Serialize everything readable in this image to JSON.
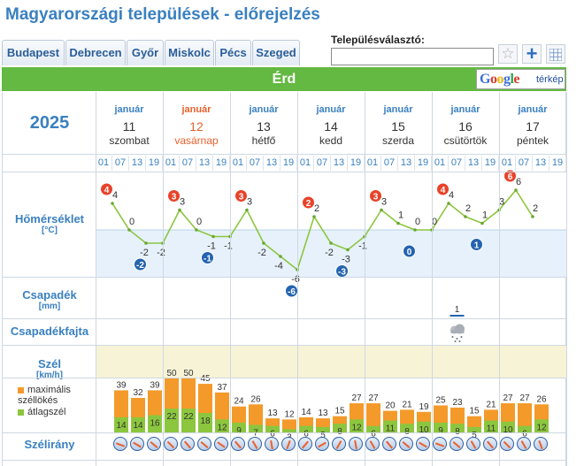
{
  "title": "Magyarországi települések - előrejelzés",
  "tabs": [
    "Budapest",
    "Debrecen",
    "Győr",
    "Miskolc",
    "Pécs",
    "Szeged"
  ],
  "selector": {
    "label": "Településválasztó:",
    "value": ""
  },
  "city": "Érd",
  "map_button": {
    "brand": "Google",
    "label": "térkép"
  },
  "year": "2025",
  "days": [
    {
      "month": "január",
      "day": "11",
      "weekday": "szombat"
    },
    {
      "month": "január",
      "day": "12",
      "weekday": "vasárnap"
    },
    {
      "month": "január",
      "day": "13",
      "weekday": "hétfő"
    },
    {
      "month": "január",
      "day": "14",
      "weekday": "kedd"
    },
    {
      "month": "január",
      "day": "15",
      "weekday": "szerda"
    },
    {
      "month": "január",
      "day": "16",
      "weekday": "csütörtök"
    },
    {
      "month": "január",
      "day": "17",
      "weekday": "péntek"
    }
  ],
  "hours": [
    "01",
    "07",
    "13",
    "19"
  ],
  "rows": {
    "temp": {
      "label": "Hőmérséklet",
      "unit": "[°C]"
    },
    "precip": {
      "label": "Csapadék",
      "unit": "[mm]"
    },
    "precip_type": {
      "label": "Csapadékfajta"
    },
    "wind": {
      "label": "Szél",
      "unit": "[km/h]",
      "legend_max": "maximális széllökés",
      "legend_avg": "átlagszél"
    },
    "wind_dir": {
      "label": "Szélirány"
    }
  },
  "temperature": [
    4,
    0,
    -2,
    -2,
    3,
    0,
    -1,
    -1,
    3,
    -2,
    -4,
    -6,
    2,
    -2,
    -3,
    -1,
    3,
    1,
    0,
    0,
    4,
    2,
    1,
    3,
    6,
    2
  ],
  "daily_max": [
    {
      "i": 0,
      "v": "4"
    },
    {
      "i": 4,
      "v": "3"
    },
    {
      "i": 8,
      "v": "3"
    },
    {
      "i": 12,
      "v": "2"
    },
    {
      "i": 16,
      "v": "3"
    },
    {
      "i": 20,
      "v": "4"
    },
    {
      "i": 24,
      "v": "6"
    }
  ],
  "daily_min": [
    {
      "i": 2,
      "v": "-2"
    },
    {
      "i": 6,
      "v": "-1"
    },
    {
      "i": 11,
      "v": "-6"
    },
    {
      "i": 14,
      "v": "-3"
    },
    {
      "i": 18,
      "v": "0"
    },
    {
      "i": 22,
      "v": "1"
    }
  ],
  "precipitation": {
    "index": 21,
    "value": "1"
  },
  "wind_gust": [
    39,
    32,
    39,
    50,
    50,
    45,
    37,
    24,
    26,
    13,
    12,
    14,
    13,
    15,
    27,
    27,
    20,
    21,
    19,
    25,
    23,
    15,
    21,
    27,
    27,
    26
  ],
  "wind_avg": [
    14,
    14,
    16,
    22,
    22,
    18,
    12,
    9,
    7,
    6,
    3,
    6,
    5,
    8,
    12,
    6,
    11,
    8,
    10,
    9,
    8,
    5,
    11,
    10,
    6,
    12
  ],
  "wind_dir_deg": [
    110,
    120,
    130,
    135,
    140,
    130,
    125,
    140,
    150,
    170,
    200,
    220,
    240,
    210,
    170,
    150,
    140,
    130,
    120,
    110,
    130,
    150,
    140,
    135,
    150,
    160
  ],
  "colors": {
    "brand": "#3a80c0",
    "city_bar": "#63b942",
    "gust": "#f39a2a",
    "avg": "#8cc63e",
    "max_badge": "#e8432a",
    "min_badge": "#2464b0",
    "sunday": "#e8612c"
  }
}
